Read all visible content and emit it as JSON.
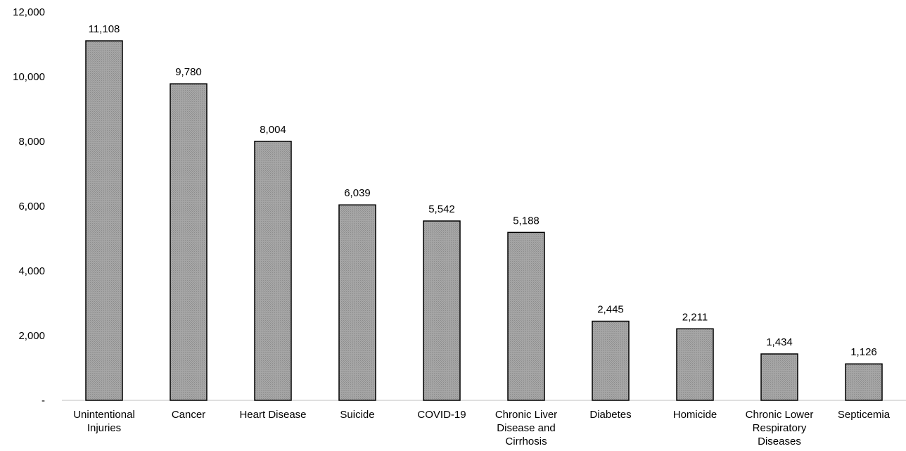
{
  "chart_data": {
    "type": "bar",
    "title": "",
    "xlabel": "",
    "ylabel": "",
    "categories": [
      [
        "Unintentional",
        "Injuries"
      ],
      [
        "Cancer"
      ],
      [
        "Heart Disease"
      ],
      [
        "Suicide"
      ],
      [
        "COVID-19"
      ],
      [
        "Chronic Liver",
        "Disease and",
        "Cirrhosis"
      ],
      [
        "Diabetes"
      ],
      [
        "Homicide"
      ],
      [
        "Chronic Lower",
        "Respiratory",
        "Diseases"
      ],
      [
        "Septicemia"
      ]
    ],
    "values": [
      11108,
      9780,
      8004,
      6039,
      5542,
      5188,
      2445,
      2211,
      1434,
      1126
    ],
    "data_labels": [
      "11,108",
      "9,780",
      "8,004",
      "6,039",
      "5,542",
      "5,188",
      "2,445",
      "2,211",
      "1,434",
      "1,126"
    ],
    "ylim": [
      0,
      12000
    ],
    "yticks": [
      0,
      2000,
      4000,
      6000,
      8000,
      10000,
      12000
    ],
    "ytick_labels": [
      "-",
      "2,000",
      "4,000",
      "6,000",
      "8,000",
      "10,000",
      "12,000"
    ],
    "grid": false,
    "legend": "none",
    "bar_fill": "#a6a6a6",
    "bar_edge": "#000000"
  }
}
